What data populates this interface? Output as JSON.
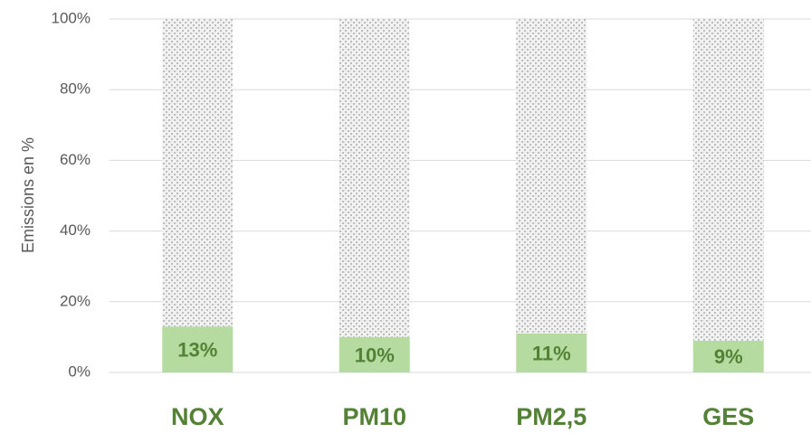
{
  "chart_data": {
    "type": "stacked_bar",
    "y_label": "Emissions en %",
    "categories": [
      "NOX",
      "PM10",
      "PM2,5",
      "GES"
    ],
    "series": [
      {
        "color": "#b5dba0",
        "values": [
          13,
          10,
          11,
          9
        ],
        "value_labels": [
          "13%",
          "10%",
          "11%",
          "9%"
        ]
      },
      {
        "color": "#d0d0d0",
        "values": [
          87,
          90,
          89,
          91
        ]
      }
    ],
    "ylim": [
      0,
      100
    ],
    "yticks": [
      {
        "value": 0,
        "label": "0%"
      },
      {
        "value": 20,
        "label": "20%"
      },
      {
        "value": 40,
        "label": "40%"
      },
      {
        "value": 60,
        "label": "60%"
      },
      {
        "value": 80,
        "label": "80%"
      },
      {
        "value": 100,
        "label": "100%"
      }
    ],
    "grid": true
  }
}
